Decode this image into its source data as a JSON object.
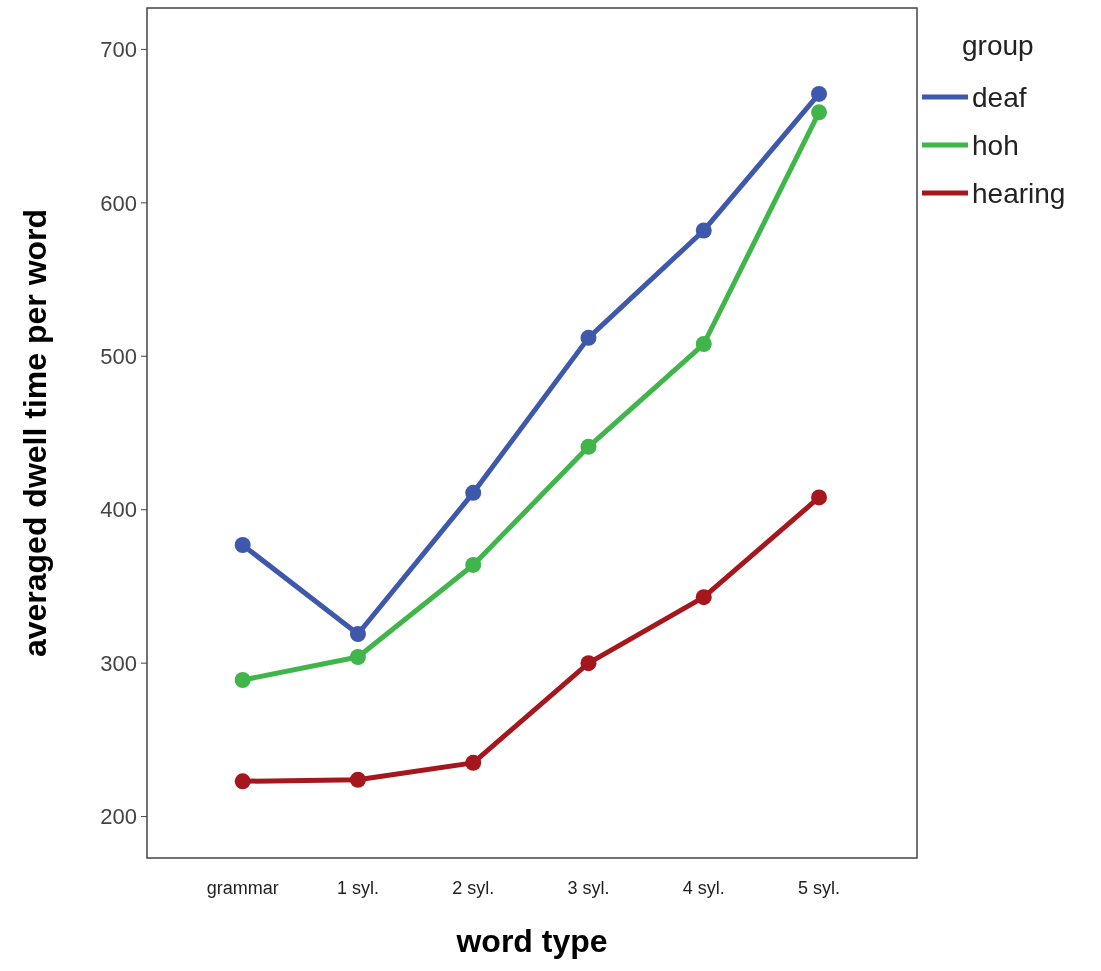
{
  "chart_data": {
    "type": "line",
    "xlabel": "word type",
    "ylabel": "averaged dwell time per word",
    "legend_title": "group",
    "categories": [
      "grammar",
      "1 syl.",
      "2 syl.",
      "3 syl.",
      "4 syl.",
      "5 syl."
    ],
    "series": [
      {
        "name": "deaf",
        "color": "#3e58ac",
        "values": [
          377,
          319,
          411,
          512,
          582,
          671
        ]
      },
      {
        "name": "hoh",
        "color": "#40b54a",
        "values": [
          289,
          304,
          364,
          441,
          508,
          659
        ]
      },
      {
        "name": "hearing",
        "color": "#a5171c",
        "values": [
          223,
          224,
          235,
          300,
          343,
          408
        ]
      }
    ],
    "ylim": [
      173,
      727
    ],
    "yticks": [
      200,
      300,
      400,
      500,
      600,
      700
    ],
    "grid": false,
    "legend": "top right",
    "marker": "circle",
    "line_style": "solid"
  }
}
